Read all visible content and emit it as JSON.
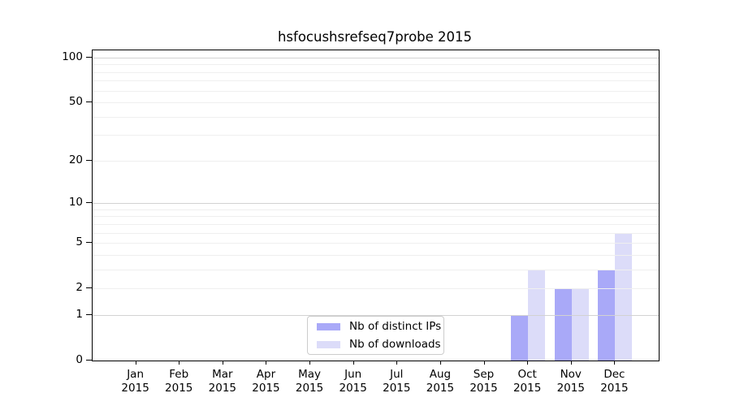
{
  "title": "hsfocushsrefseq7probe 2015",
  "legend": {
    "items": [
      {
        "label": "Nb of distinct IPs",
        "color": "#a9a9f8"
      },
      {
        "label": "Nb of downloads",
        "color": "#dcdcf9"
      }
    ]
  },
  "colors": {
    "bar_distinct_ips": "#a9a9f8",
    "bar_downloads": "#dcdcf9",
    "grid_major": "#d2d2d2",
    "grid_minor": "#efefef",
    "axis": "#000000",
    "legend_border": "#cccccc"
  },
  "chart_data": {
    "type": "bar",
    "title": "hsfocushsrefseq7probe 2015",
    "categories": [
      "Jan",
      "Feb",
      "Mar",
      "Apr",
      "May",
      "Jun",
      "Jul",
      "Aug",
      "Sep",
      "Oct",
      "Nov",
      "Dec"
    ],
    "category_year": "2015",
    "series": [
      {
        "name": "Nb of distinct IPs",
        "color": "#a9a9f8",
        "values": [
          0,
          0,
          0,
          0,
          0,
          0,
          0,
          0,
          0,
          1,
          2,
          3
        ]
      },
      {
        "name": "Nb of downloads",
        "color": "#dcdcf9",
        "values": [
          0,
          0,
          0,
          0,
          0,
          0,
          0,
          0,
          0,
          3,
          2,
          6
        ]
      }
    ],
    "xlabel": "",
    "ylabel": "",
    "y_axis": {
      "scale": "log10(1+v)",
      "tick_values": [
        0,
        1,
        2,
        5,
        10,
        20,
        50,
        100
      ],
      "tick_labels": [
        "0",
        "1",
        "2",
        "5",
        "10",
        "20",
        "50",
        "100"
      ],
      "range_top_value": 100
    },
    "grid": {
      "on": true,
      "drawn_above_bars": true,
      "major_values": [
        1,
        10,
        100
      ],
      "minor_values": [
        2,
        3,
        4,
        5,
        6,
        7,
        8,
        9,
        20,
        30,
        40,
        50,
        60,
        70,
        80,
        90
      ]
    },
    "legend_position": "lower-center-inside"
  }
}
